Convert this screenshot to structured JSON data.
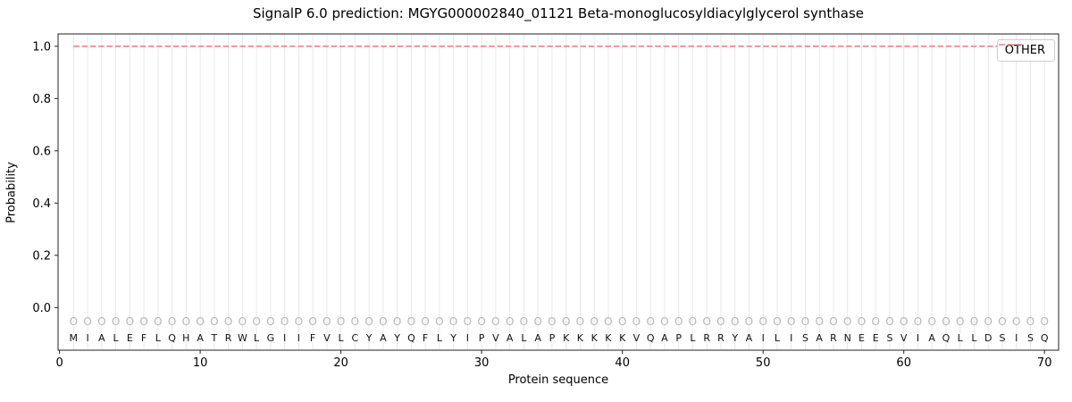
{
  "figure": {
    "title": "SignalP 6.0 prediction: MGYG000002840_01121 Beta-monoglucosyldiacylglycerol synthase"
  },
  "chart_data": {
    "type": "line",
    "title": "SignalP 6.0 prediction: MGYG000002840_01121 Beta-monoglucosyldiacylglycerol synthase",
    "xlabel": "Protein sequence",
    "ylabel": "Probability",
    "xticks": [
      0,
      10,
      20,
      30,
      40,
      50,
      60,
      70
    ],
    "yticks": [
      0.0,
      0.2,
      0.4,
      0.6,
      0.8,
      1.0
    ],
    "xlim": [
      -0.1,
      71.0
    ],
    "ylim": [
      -0.163,
      1.047
    ],
    "grid": "vertical line at every residue position",
    "legend": {
      "position": "upper right",
      "entries": [
        {
          "label": "OTHER",
          "color": "#f08080",
          "linestyle": "dashed"
        }
      ]
    },
    "sequence": "MIALEFLQHATRWLGIIFVLCYAYQFLYIPVALAPKKKKKVQAPLRRYAILISARNEESVIAQLLDSISQ",
    "residue_tags": "OOOOOOOOOOOOOOOOOOOOOOOOOOOOOOOOOOOOOOOOOOOOOOOOOOOOOOOOOOOOOOOOOOOOOO",
    "series": [
      {
        "name": "OTHER",
        "x": [
          1,
          2,
          3,
          4,
          5,
          6,
          7,
          8,
          9,
          10,
          11,
          12,
          13,
          14,
          15,
          16,
          17,
          18,
          19,
          20,
          21,
          22,
          23,
          24,
          25,
          26,
          27,
          28,
          29,
          30,
          31,
          32,
          33,
          34,
          35,
          36,
          37,
          38,
          39,
          40,
          41,
          42,
          43,
          44,
          45,
          46,
          47,
          48,
          49,
          50,
          51,
          52,
          53,
          54,
          55,
          56,
          57,
          58,
          59,
          60,
          61,
          62,
          63,
          64,
          65,
          66,
          67,
          68,
          69,
          70
        ],
        "values": [
          1,
          1,
          1,
          1,
          1,
          1,
          1,
          1,
          1,
          1,
          1,
          1,
          1,
          1,
          1,
          1,
          1,
          1,
          1,
          1,
          1,
          1,
          1,
          1,
          1,
          1,
          1,
          1,
          1,
          1,
          1,
          1,
          1,
          1,
          1,
          1,
          1,
          1,
          1,
          1,
          1,
          1,
          1,
          1,
          1,
          1,
          1,
          1,
          1,
          1,
          1,
          1,
          1,
          1,
          1,
          1,
          1,
          1,
          1,
          1,
          1,
          1,
          1,
          1,
          1,
          1,
          1,
          1,
          1,
          1
        ]
      }
    ],
    "colors": {
      "other_line": "#f08080",
      "grid_line": "#e8e8e8",
      "spine": "#222222",
      "tag_letter": "#b5b5b5",
      "sequence_letter": "#111111"
    }
  }
}
